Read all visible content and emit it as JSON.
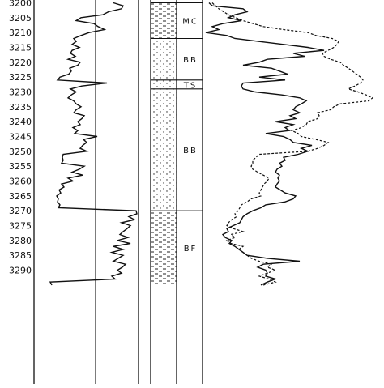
{
  "depth_axis": {
    "ticks": [
      "3200",
      "3205",
      "3210",
      "3215",
      "3220",
      "3225",
      "3230",
      "3235",
      "3240",
      "3245",
      "3250",
      "3255",
      "3260",
      "3265",
      "3270",
      "3275",
      "3280",
      "3285",
      "3290"
    ]
  },
  "lithology": {
    "units": [
      {
        "label": "MC",
        "top": 3200,
        "bottom": 3212,
        "pattern": "shale"
      },
      {
        "label": "BB",
        "top": 3212,
        "bottom": 3226,
        "pattern": "sand"
      },
      {
        "label": "TS",
        "top": 3226,
        "bottom": 3229,
        "pattern": "sand"
      },
      {
        "label": "BB",
        "top": 3229,
        "bottom": 3270,
        "pattern": "sand"
      },
      {
        "label": "BF",
        "top": 3270,
        "bottom": 3295,
        "pattern": "shale"
      }
    ]
  },
  "logs": {
    "left_curve_color": "#111111",
    "right_solid_color": "#111111",
    "right_dashed_color": "#111111"
  }
}
